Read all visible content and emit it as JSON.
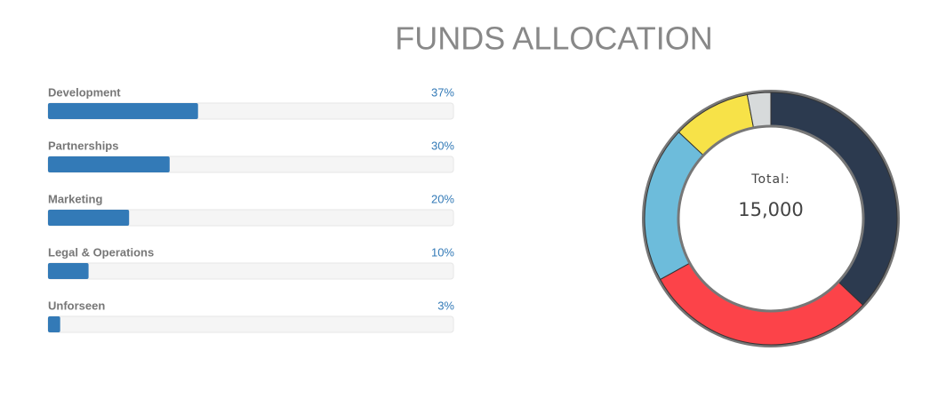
{
  "title": "FUNDS ALLOCATION",
  "chart_data": [
    {
      "type": "bar",
      "categories": [
        "Development",
        "Partnerships",
        "Marketing",
        "Legal & Operations",
        "Unforseen"
      ],
      "values": [
        37,
        30,
        20,
        10,
        3
      ],
      "value_labels": [
        "37%",
        "30%",
        "20%",
        "10%",
        "3%"
      ],
      "xlim": [
        0,
        100
      ],
      "color": "#337ab7"
    },
    {
      "type": "pie",
      "donut": true,
      "values": [
        37,
        30,
        20,
        10,
        3
      ],
      "colors": [
        "#2c3a4f",
        "#fc4349",
        "#6dbcdb",
        "#f7e248",
        "#d7dadb"
      ],
      "center_label": "Total:",
      "center_value": "15,000"
    }
  ]
}
